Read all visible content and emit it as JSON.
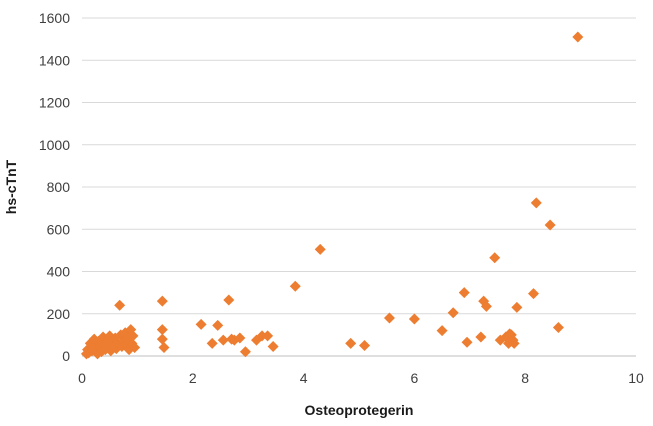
{
  "chart_data": {
    "type": "scatter",
    "xlabel": "Osteoprotegerin",
    "ylabel": "hs-cTnT",
    "xlim": [
      0,
      10
    ],
    "ylim": [
      0,
      1600
    ],
    "x_ticks": [
      "0",
      "2",
      "4",
      "6",
      "8",
      "10"
    ],
    "y_ticks": [
      "0",
      "200",
      "400",
      "600",
      "800",
      "1000",
      "1200",
      "1400",
      "1600"
    ],
    "grid": "horizontal",
    "legend": "none",
    "marker": "diamond",
    "color": "#ED7D31",
    "points": [
      [
        0.08,
        10
      ],
      [
        0.1,
        30
      ],
      [
        0.12,
        15
      ],
      [
        0.15,
        60
      ],
      [
        0.18,
        25
      ],
      [
        0.2,
        50
      ],
      [
        0.22,
        80
      ],
      [
        0.25,
        35
      ],
      [
        0.28,
        10
      ],
      [
        0.3,
        70
      ],
      [
        0.32,
        45
      ],
      [
        0.35,
        20
      ],
      [
        0.38,
        90
      ],
      [
        0.4,
        55
      ],
      [
        0.42,
        30
      ],
      [
        0.45,
        65
      ],
      [
        0.48,
        40
      ],
      [
        0.5,
        95
      ],
      [
        0.52,
        25
      ],
      [
        0.55,
        75
      ],
      [
        0.58,
        50
      ],
      [
        0.6,
        85
      ],
      [
        0.62,
        35
      ],
      [
        0.65,
        60
      ],
      [
        0.68,
        240
      ],
      [
        0.7,
        100
      ],
      [
        0.72,
        45
      ],
      [
        0.75,
        70
      ],
      [
        0.78,
        110
      ],
      [
        0.8,
        55
      ],
      [
        0.82,
        85
      ],
      [
        0.85,
        30
      ],
      [
        0.88,
        125
      ],
      [
        0.9,
        60
      ],
      [
        0.92,
        95
      ],
      [
        0.95,
        40
      ],
      [
        1.45,
        260
      ],
      [
        1.45,
        125
      ],
      [
        1.45,
        80
      ],
      [
        1.48,
        40
      ],
      [
        2.15,
        150
      ],
      [
        2.35,
        60
      ],
      [
        2.45,
        145
      ],
      [
        2.55,
        75
      ],
      [
        2.65,
        265
      ],
      [
        2.7,
        80
      ],
      [
        2.75,
        75
      ],
      [
        2.85,
        85
      ],
      [
        2.95,
        20
      ],
      [
        3.15,
        75
      ],
      [
        3.25,
        95
      ],
      [
        3.35,
        95
      ],
      [
        3.45,
        45
      ],
      [
        3.85,
        330
      ],
      [
        4.3,
        505
      ],
      [
        4.85,
        60
      ],
      [
        5.1,
        50
      ],
      [
        5.55,
        180
      ],
      [
        6.0,
        175
      ],
      [
        6.5,
        120
      ],
      [
        6.7,
        205
      ],
      [
        6.9,
        300
      ],
      [
        6.95,
        65
      ],
      [
        7.2,
        90
      ],
      [
        7.25,
        260
      ],
      [
        7.3,
        235
      ],
      [
        7.45,
        465
      ],
      [
        7.55,
        75
      ],
      [
        7.65,
        90
      ],
      [
        7.7,
        60
      ],
      [
        7.72,
        105
      ],
      [
        7.75,
        100
      ],
      [
        7.78,
        75
      ],
      [
        7.8,
        60
      ],
      [
        7.85,
        230
      ],
      [
        8.15,
        295
      ],
      [
        8.2,
        725
      ],
      [
        8.45,
        620
      ],
      [
        8.6,
        135
      ],
      [
        8.95,
        1510
      ]
    ]
  }
}
